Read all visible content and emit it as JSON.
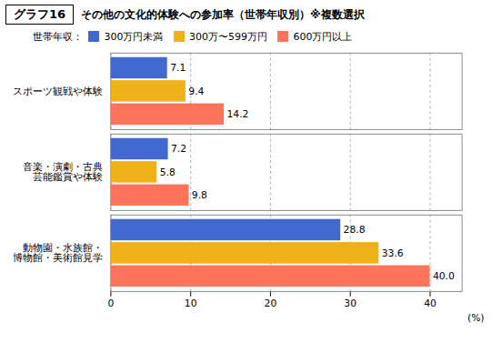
{
  "chart_data": {
    "type": "bar",
    "orientation": "horizontal",
    "title": "グラフ16",
    "subtitle": "その他の文化的体験への参加率（世帯年収別）※複数選択",
    "legend_title": "世帯年収：",
    "legend": "top",
    "categories": [
      "動物園・水族館・\n博物館・美術館見学",
      "音楽・演劇・古典\n芸能鑑賞や体験",
      "スポーツ観戦や体験"
    ],
    "series": [
      {
        "name": "300万円未満",
        "values": [
          28.8,
          7.2,
          7.1
        ],
        "value_labels": [
          "28.8",
          "7.2",
          "7.1"
        ]
      },
      {
        "name": "300万〜599万円",
        "values": [
          33.6,
          5.8,
          9.4
        ],
        "value_labels": [
          "33.6",
          "5.8",
          "9.4"
        ]
      },
      {
        "name": "600万円以上",
        "values": [
          40.0,
          9.8,
          14.2
        ],
        "value_labels": [
          "40.0",
          "9.8",
          "14.2"
        ]
      }
    ],
    "xlabel": "(%)",
    "xlim": [
      0,
      44
    ],
    "xticks": [
      0,
      10,
      20,
      30,
      40
    ],
    "grid": true,
    "data_labels": true
  }
}
